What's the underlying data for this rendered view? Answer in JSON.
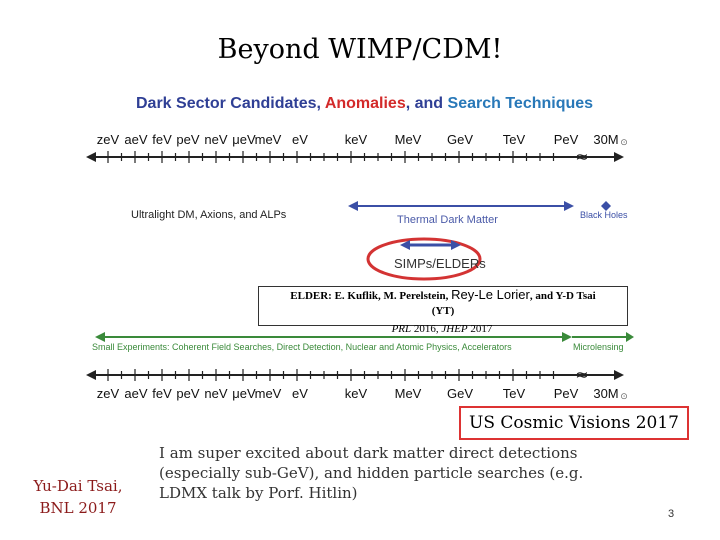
{
  "title": "Beyond WIMP/CDM!",
  "heading": {
    "part1": "Dark Sector Candidates",
    "sep1": ", ",
    "part2": "Anomalies",
    "sep2": ", and ",
    "part3": "Search Techniques"
  },
  "scale_labels": [
    "zeV",
    "aeV",
    "feV",
    "peV",
    "neV",
    "μeV",
    "meV",
    "eV",
    "keV",
    "MeV",
    "GeV",
    "TeV",
    "PeV",
    "30M"
  ],
  "solar_symbol": "⊙",
  "range_labels": {
    "ultralight": "Ultralight DM, Axions, and ALPs",
    "thermal": "Thermal Dark Matter",
    "black_holes": "Black Holes"
  },
  "simps_label": "SIMPs/ELDERs",
  "elder_ref": {
    "authors_start": "ELDER: E. Kuflik, M. Perelstein, ",
    "authors_mid": "Rey-Le Lorier",
    "authors_end": ", and Y-D Tsai",
    "yt": "(YT)"
  },
  "journals": {
    "prl": "PRL",
    "prl_year": " 2016, ",
    "jhep": "JHEP",
    "jhep_year": " 2017"
  },
  "experiments": {
    "small": "Small Experiments: Coherent Field Searches, Direct Detection, Nuclear and Atomic Physics, Accelerators",
    "microlensing": "Microlensing"
  },
  "cosmic_visions": "US Cosmic Visions 2017",
  "author": {
    "name": "Yu-Dai Tsai,",
    "affiliation": "BNL 2017"
  },
  "comment": "I am super excited about dark matter direct detections (especially sub-GeV), and hidden particle searches (e.g. LDMX talk by Porf. Hitlin)",
  "page_number": "3",
  "colors": {
    "dark_sector": "#2f3f95",
    "anomalies": "#d32a2a",
    "search": "#2878b8",
    "green": "#3a8a3a",
    "blue": "#3b4fa6",
    "red": "#d33333"
  }
}
